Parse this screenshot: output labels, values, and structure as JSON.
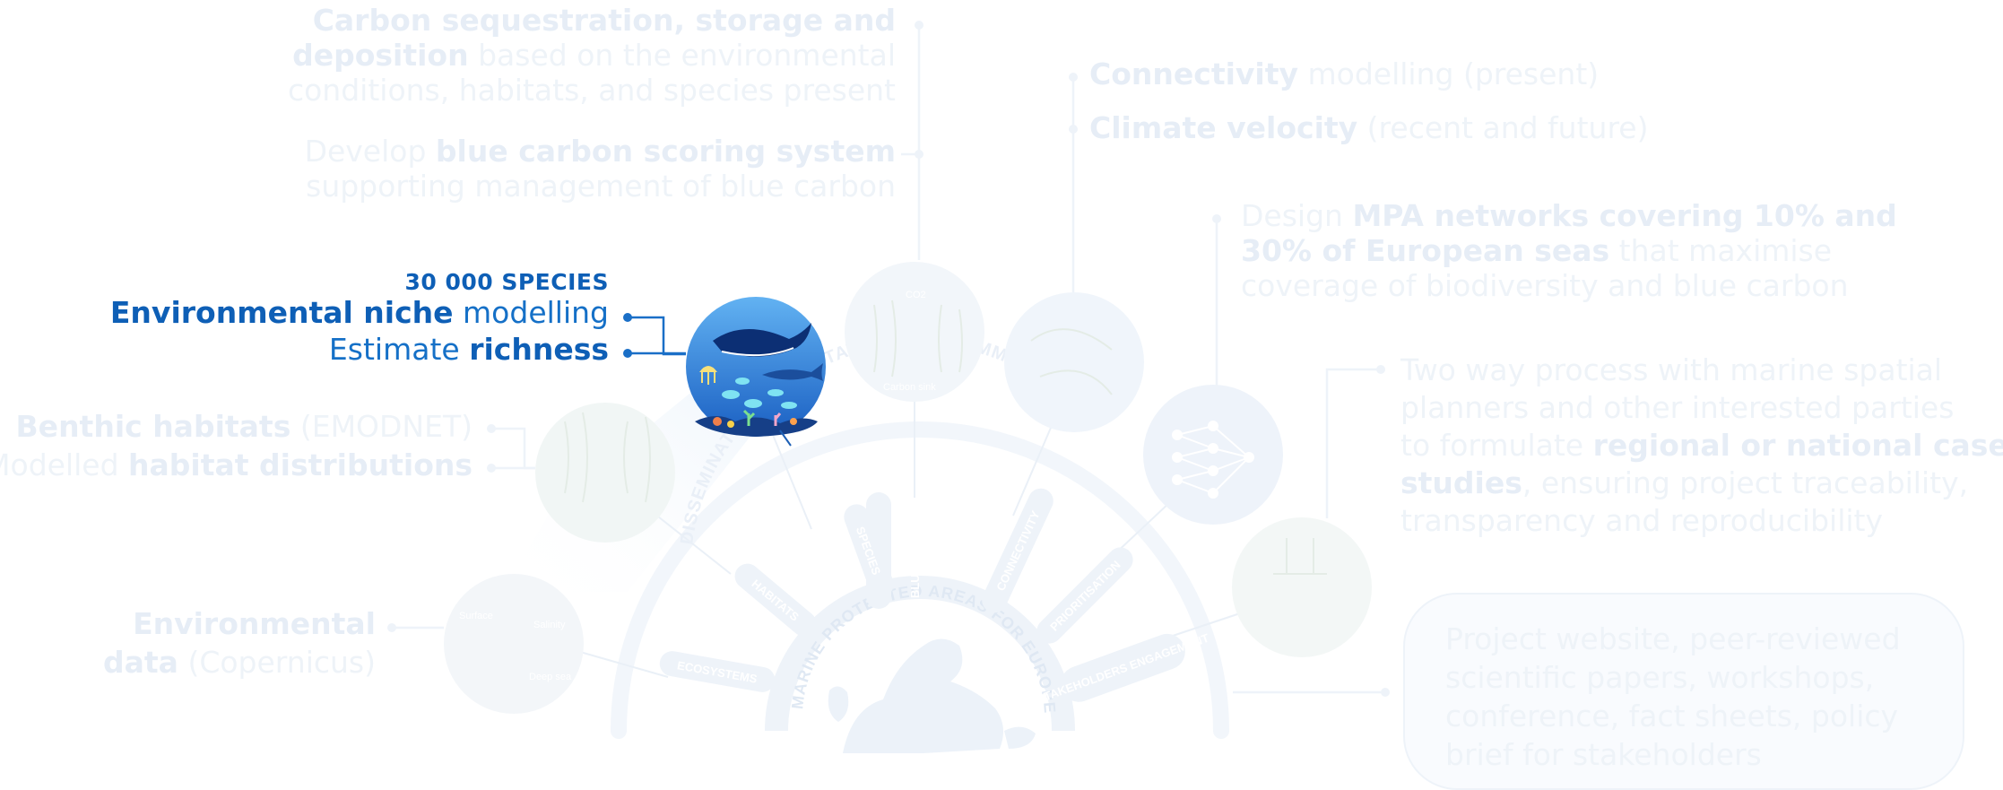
{
  "outputs": {
    "carbon": {
      "line1_bold": "Carbon sequestration, storage and",
      "line2_bold": "deposition",
      "line2_rest": " based on the environmental",
      "line3": "conditions, habitats, and species present"
    },
    "scoring": {
      "line1_pre": "Develop ",
      "line1_bold": "blue carbon scoring system",
      "line2": "supporting management of blue carbon"
    },
    "connectivity": {
      "bold": "Connectivity",
      "rest": " modelling (present)"
    },
    "velocity": {
      "bold": "Climate velocity",
      "rest": " (recent and future)"
    },
    "mpa": {
      "line1_pre": "Design ",
      "line1_bold": "MPA networks covering 10% and",
      "line2_bold": "30% of European seas",
      "line2_rest": " that maximise",
      "line3": "coverage of biodiversity and blue carbon"
    },
    "stakeholders": {
      "line1": "Two way process with marine spatial",
      "line2": "planners and other interested parties",
      "line3_pre": "to formulate ",
      "line3_bold": "regional or national case",
      "line4_bold": "studies",
      "line4_rest": ", ensuring project traceability,",
      "line5": "transparency and reproducibility"
    },
    "dissemination": {
      "line1": "Project website, peer-reviewed",
      "line2": "scientific papers, workshops,",
      "line3": "conference, fact sheets, policy",
      "line4": "brief for stakeholders"
    }
  },
  "inputs": {
    "species": {
      "count": "30 000 SPECIES",
      "line1_bold": "Environmental niche",
      "line1_rest": " modelling",
      "line2_pre": "Estimate ",
      "line2_bold": "richness"
    },
    "habitats": {
      "line1_bold": "Benthic habitats",
      "line1_rest": " (EMODNET)",
      "line2_pre": "Modelled ",
      "line2_bold": "habitat distributions"
    },
    "environment": {
      "line1_bold": "Environmental",
      "line2_bold": "data",
      "line2_rest": " (Copernicus)"
    }
  },
  "arc": {
    "outer_label": "DISSEMINATION, EXPLOITATION AND COMMUNICATION",
    "inner_label": "MARINE PROTECTED AREAS FOR EUROPE",
    "spokes": [
      "ECOSYSTEMS",
      "HABITATS",
      "SPECIES",
      "BLUE CARBON",
      "CONNECTIVITY",
      "PRIORITISATION",
      "STAKEHOLDERS ENGAGEMENT"
    ]
  },
  "circle_labels": {
    "carbon_sink": "Carbon sink",
    "co2": "CO2",
    "env_surface": "Surface",
    "env_deep": "Deep sea",
    "env_temp": "Salinity"
  },
  "colors": {
    "highlight_blue": "#0e5fb6",
    "faded": "#eef3f9",
    "ocean_top": "#5aa9ee",
    "ocean_bottom": "#1a63c4"
  }
}
